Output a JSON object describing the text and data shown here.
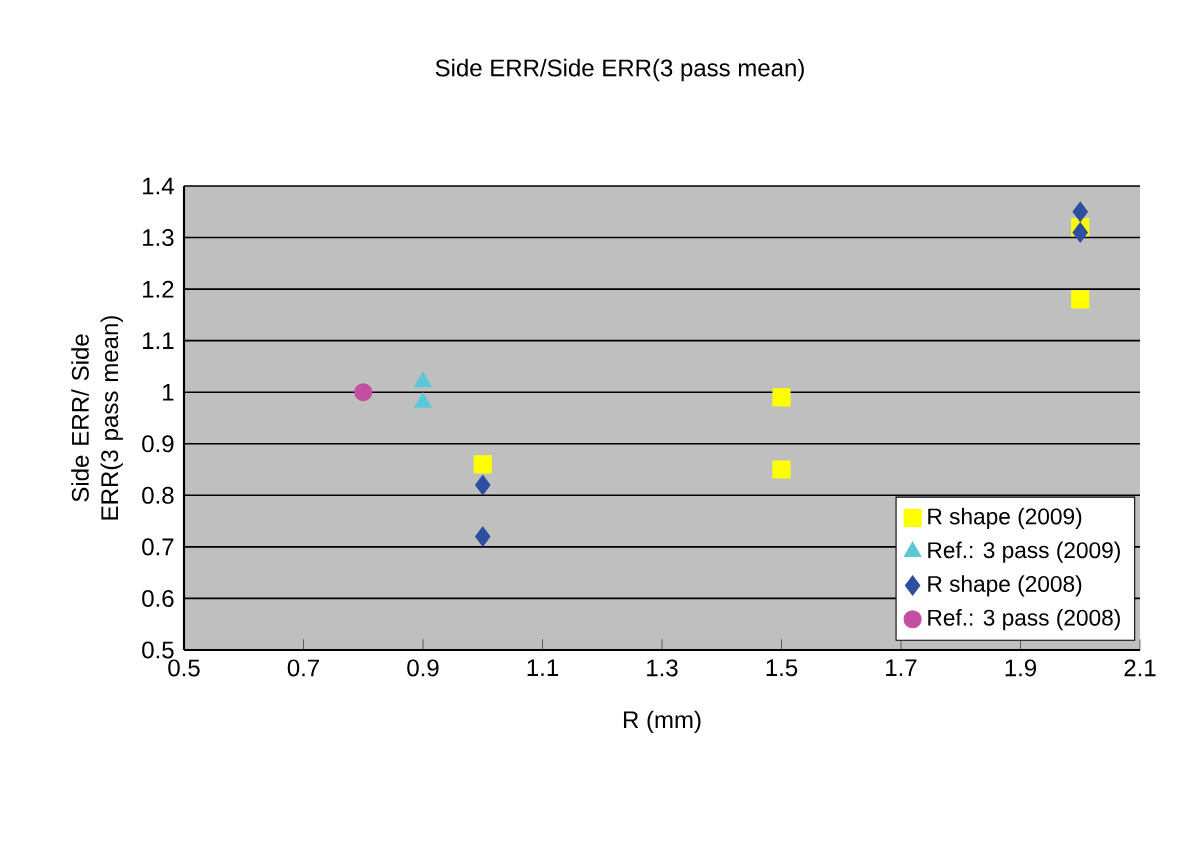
{
  "chart_data": {
    "type": "scatter",
    "title": "Side ERR/Side ERR(3 pass mean)",
    "xlabel": "R (mm)",
    "ylabel": "Side ERR/ Side ERR(3 pass mean)",
    "xlim": [
      0.5,
      2.1
    ],
    "xticks": [
      0.5,
      0.7,
      0.9,
      1.1,
      1.3,
      1.5,
      1.7,
      1.9,
      2.1
    ],
    "ylim": [
      0.5,
      1.4
    ],
    "yticks": [
      0.5,
      0.6,
      0.7,
      0.8,
      0.9,
      1,
      1.1,
      1.2,
      1.3,
      1.4
    ],
    "grid": "y",
    "legend": "bottom right",
    "series": [
      {
        "name": "R shape (2009)",
        "color": "#ffff00",
        "marker": "square",
        "x": [
          1.0,
          1.5,
          1.5,
          2.0,
          2.0
        ],
        "values": [
          0.86,
          0.99,
          0.85,
          1.18,
          1.32
        ]
      },
      {
        "name": "Ref.: 3 pass (2009)",
        "color": "#5bc8d8",
        "marker": "triangle",
        "x": [
          0.9,
          0.9
        ],
        "values": [
          1.02,
          0.98
        ]
      },
      {
        "name": "R shape (2008)",
        "color": "#2e4ea0",
        "marker": "diamond",
        "x": [
          1.0,
          1.0,
          2.0,
          2.0
        ],
        "values": [
          0.82,
          0.72,
          1.35,
          1.31
        ]
      },
      {
        "name": "Ref.: 3 pass (2008)",
        "color": "#c44fa0",
        "marker": "circle",
        "x": [
          0.8
        ],
        "values": [
          1.0
        ]
      }
    ]
  }
}
